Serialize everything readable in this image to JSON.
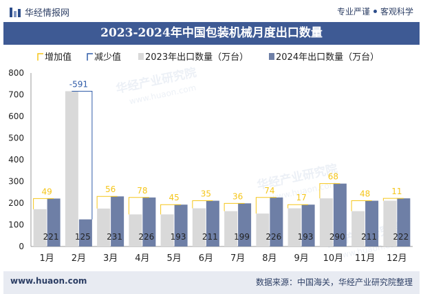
{
  "header": {
    "brand": "华经情报网",
    "tagline_left": "专业严谨",
    "tagline_right": "客观科学"
  },
  "title": "2023-2024年中国包装机械月度出口数量",
  "footer": {
    "url": "www.huaon.com",
    "source": "数据来源：中国海关，华经产业研究院整理"
  },
  "watermarks": [
    "华经产业研究院",
    "www.huaon.com"
  ],
  "colors": {
    "increase": "#f5c518",
    "decrease": "#2f5ba8",
    "series2023": "#d9d9d9",
    "series2024": "#6e7fa6",
    "title_bg": "#3e5a94"
  },
  "chart_data": {
    "type": "bar",
    "categories": [
      "1月",
      "2月",
      "3月",
      "4月",
      "5月",
      "6月",
      "7月",
      "8月",
      "9月",
      "10月",
      "11月",
      "12月"
    ],
    "series": [
      {
        "name": "2023年出口数量（万台）",
        "values": [
          172,
          716,
          175,
          148,
          148,
          176,
          163,
          152,
          176,
          222,
          163,
          211
        ]
      },
      {
        "name": "2024年出口数量（万台）",
        "values": [
          221,
          125,
          231,
          226,
          193,
          211,
          199,
          226,
          193,
          290,
          211,
          222
        ]
      }
    ],
    "change_labels": [
      "49",
      "-591",
      "56",
      "78",
      "45",
      "35",
      "36",
      "74",
      "17",
      "68",
      "48",
      "11"
    ],
    "legend": [
      "增加值",
      "减少值",
      "2023年出口数量（万台）",
      "2024年出口数量（万台）"
    ],
    "legend_position": "top-left",
    "ylim": [
      0,
      800
    ],
    "yticks": [
      0,
      100,
      200,
      300,
      400,
      500,
      600,
      700,
      800
    ],
    "grid": false
  }
}
